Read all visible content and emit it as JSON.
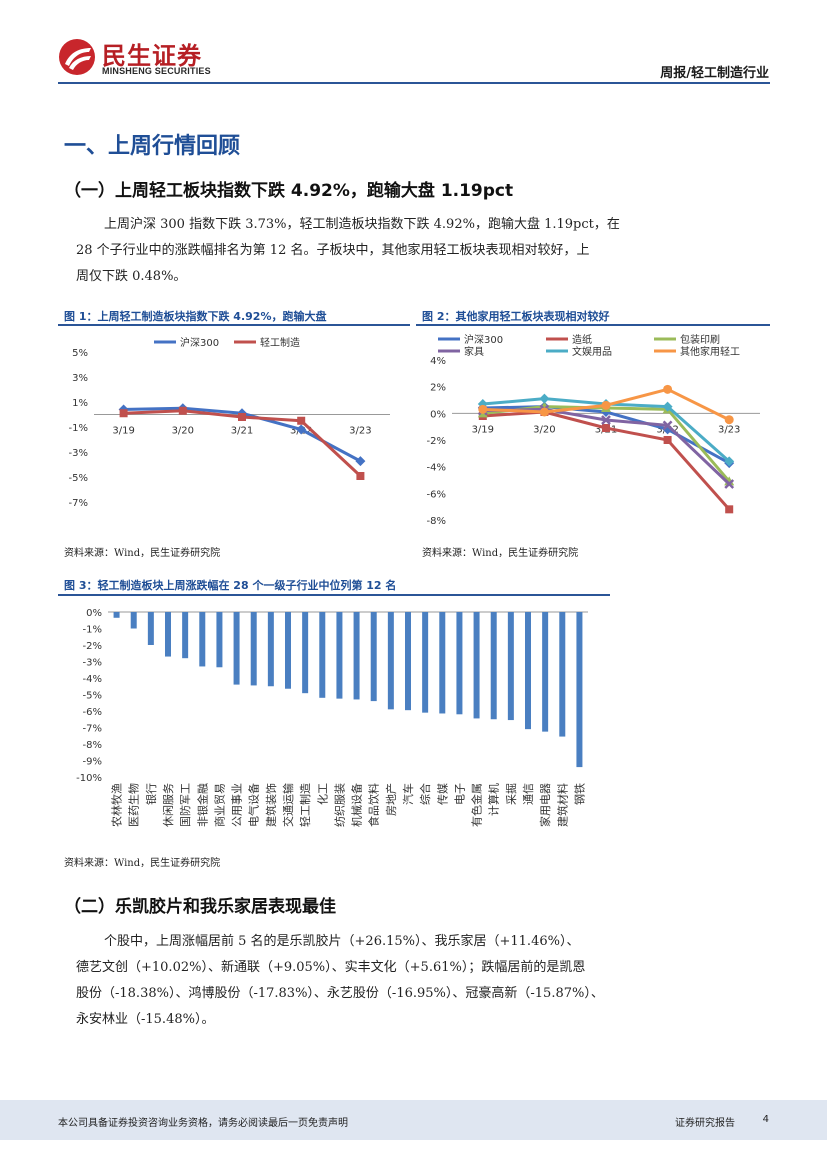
{
  "header": {
    "logo_cn": "民生证券",
    "logo_en": "MINSHENG SECURITIES",
    "report_type": "周报/轻工制造行业"
  },
  "section1": {
    "title": "一、上周行情回顾",
    "sub1": {
      "title": "（一）上周轻工板块指数下跌 4.92%，跑输大盘 1.19pct",
      "lines": [
        "上周沪深 300 指数下跌 3.73%，轻工制造板块指数下跌 4.92%，跑输大盘 1.19pct，在",
        "28 个子行业中的涨跌幅排名为第 12 名。子板块中，其他家用轻工板块表现相对较好，上",
        "周仅下跌 0.48%。"
      ]
    },
    "sub2": {
      "title": "（二）乐凯胶片和我乐家居表现最佳",
      "lines": [
        "个股中，上周涨幅居前 5 名的是乐凯胶片（+26.15%）、我乐家居（+11.46%）、",
        "德艺文创（+10.02%）、新通联（+9.05%）、实丰文化（+5.61%）；跌幅居前的是凯恩",
        "股份（-18.38%）、鸿博股份（-17.83%）、永艺股份（-16.95%）、冠豪高新（-15.87%）、",
        "永安林业（-15.48%）。"
      ]
    }
  },
  "figures": {
    "fig1": {
      "title": "图 1：上周轻工制造板块指数下跌 4.92%，跑输大盘",
      "source": "资料来源：Wind，民生证券研究院"
    },
    "fig2": {
      "title": "图 2：其他家用轻工板块表现相对较好",
      "source": "资料来源：Wind，民生证券研究院"
    },
    "fig3": {
      "title": "图 3：轻工制造板块上周涨跌幅在 28 个一级子行业中位列第 12 名",
      "source": "资料来源：Wind，民生证券研究院"
    }
  },
  "chart_data": [
    {
      "type": "line",
      "categories": [
        "3/19",
        "3/20",
        "3/21",
        "3/22",
        "3/23"
      ],
      "y_ticks": [
        "5%",
        "3%",
        "1%",
        "-1%",
        "-3%",
        "-5%",
        "-7%"
      ],
      "ylim": [
        -7,
        5
      ],
      "legend_position": "top",
      "series": [
        {
          "name": "沪深300",
          "color": "#4472c4",
          "values": [
            0.4,
            0.5,
            0.1,
            -1.2,
            -3.73
          ]
        },
        {
          "name": "轻工制造",
          "color": "#c0504d",
          "values": [
            0.1,
            0.3,
            -0.2,
            -0.5,
            -4.92
          ]
        }
      ]
    },
    {
      "type": "line",
      "categories": [
        "3/19",
        "3/20",
        "3/21",
        "3/22",
        "3/23"
      ],
      "y_ticks": [
        "4%",
        "2%",
        "0%",
        "-2%",
        "-4%",
        "-6%",
        "-8%"
      ],
      "ylim": [
        -8,
        4
      ],
      "legend_position": "top",
      "series": [
        {
          "name": "沪深300",
          "color": "#4472c4",
          "values": [
            0.4,
            0.5,
            0.1,
            -1.2,
            -3.73
          ]
        },
        {
          "name": "造纸",
          "color": "#c0504d",
          "values": [
            -0.2,
            0.1,
            -1.1,
            -2.0,
            -7.2
          ]
        },
        {
          "name": "包装印刷",
          "color": "#9bbb59",
          "values": [
            0.0,
            0.5,
            0.4,
            0.3,
            -5.1
          ]
        },
        {
          "name": "家具",
          "color": "#8064a2",
          "values": [
            0.2,
            0.3,
            -0.5,
            -0.9,
            -5.3
          ]
        },
        {
          "name": "文娱用品",
          "color": "#4bacc6",
          "values": [
            0.7,
            1.1,
            0.7,
            0.5,
            -3.6
          ]
        },
        {
          "name": "其他家用轻工",
          "color": "#f79646",
          "values": [
            0.3,
            0.1,
            0.6,
            1.8,
            -0.48
          ]
        }
      ]
    },
    {
      "type": "bar",
      "color": "#4a7fc1",
      "ylim": [
        -10,
        0
      ],
      "y_ticks": [
        "0%",
        "-1%",
        "-2%",
        "-3%",
        "-4%",
        "-5%",
        "-6%",
        "-7%",
        "-8%",
        "-9%",
        "-10%"
      ],
      "categories": [
        "农林牧渔",
        "医药生物",
        "银行",
        "休闲服务",
        "国防军工",
        "非银金融",
        "商业贸易",
        "公用事业",
        "电气设备",
        "建筑装饰",
        "交通运输",
        "轻工制造",
        "化工",
        "纺织服装",
        "机械设备",
        "食品饮料",
        "房地产",
        "汽车",
        "综合",
        "传媒",
        "电子",
        "有色金属",
        "计算机",
        "采掘",
        "通信",
        "家用电器",
        "建筑材料",
        "钢铁"
      ],
      "values": [
        -0.35,
        -1.0,
        -2.0,
        -2.7,
        -2.8,
        -3.3,
        -3.35,
        -4.4,
        -4.45,
        -4.5,
        -4.65,
        -4.92,
        -5.2,
        -5.25,
        -5.3,
        -5.4,
        -5.9,
        -5.95,
        -6.1,
        -6.15,
        -6.2,
        -6.45,
        -6.5,
        -6.55,
        -7.1,
        -7.25,
        -7.55,
        -9.4
      ]
    }
  ],
  "footer": {
    "disclaimer": "本公司具备证券投资咨询业务资格，请务必阅读最后一页免责声明",
    "report_label": "证券研究报告",
    "page_number": "4"
  }
}
